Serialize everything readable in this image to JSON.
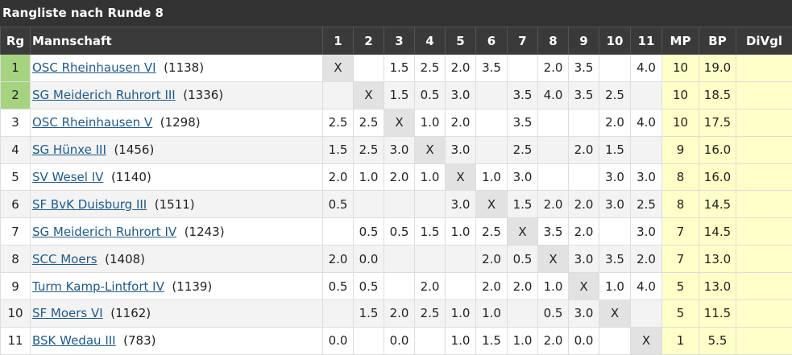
{
  "title": "Rangliste nach Runde 8",
  "table": {
    "header": [
      "Rg",
      "Mannschaft",
      "1",
      "2",
      "3",
      "4",
      "5",
      "6",
      "7",
      "8",
      "9",
      "10",
      "11",
      "MP",
      "BP",
      "DiVgl"
    ],
    "rows": [
      {
        "rank": "1",
        "team": "OSC Rheinhausen VI",
        "rating": "(1138)",
        "results": [
          "X",
          null,
          "1.5",
          "2.5",
          "2.0",
          "3.5",
          null,
          "2.0",
          "3.5",
          null,
          "4.0"
        ],
        "mp": "10",
        "bp": "19.0"
      },
      {
        "rank": "2",
        "team": "SG Meiderich Ruhrort III",
        "rating": "(1336)",
        "results": [
          null,
          "X",
          "1.5",
          "0.5",
          "3.0",
          null,
          "3.5",
          "4.0",
          "3.5",
          "2.5",
          null
        ],
        "mp": "10",
        "bp": "18.5"
      },
      {
        "rank": "3",
        "team": "OSC Rheinhausen V",
        "rating": "(1298)",
        "results": [
          "2.5",
          "2.5",
          "X",
          "1.0",
          "2.0",
          null,
          "3.5",
          null,
          null,
          "2.0",
          "4.0"
        ],
        "mp": "10",
        "bp": "17.5"
      },
      {
        "rank": "4",
        "team": "SG Hünxe III",
        "rating": "(1456)",
        "results": [
          "1.5",
          "2.5",
          "3.0",
          "X",
          "3.0",
          null,
          "2.5",
          null,
          "2.0",
          "1.5",
          null
        ],
        "mp": "9",
        "bp": "16.0"
      },
      {
        "rank": "5",
        "team": "SV Wesel IV",
        "rating": "(1140)",
        "results": [
          "2.0",
          "1.0",
          "2.0",
          "1.0",
          "X",
          "1.0",
          "3.0",
          null,
          null,
          "3.0",
          "3.0"
        ],
        "mp": "8",
        "bp": "16.0"
      },
      {
        "rank": "6",
        "team": "SF BvK Duisburg III",
        "rating": "(1511)",
        "results": [
          "0.5",
          null,
          null,
          null,
          "3.0",
          "X",
          "1.5",
          "2.0",
          "2.0",
          "3.0",
          "2.5"
        ],
        "mp": "8",
        "bp": "14.5"
      },
      {
        "rank": "7",
        "team": "SG Meiderich Ruhrort IV",
        "rating": "(1243)",
        "results": [
          null,
          "0.5",
          "0.5",
          "1.5",
          "1.0",
          "2.5",
          "X",
          "3.5",
          "2.0",
          null,
          "3.0"
        ],
        "mp": "7",
        "bp": "14.5"
      },
      {
        "rank": "8",
        "team": "SCC Moers",
        "rating": "(1408)",
        "results": [
          "2.0",
          "0.0",
          null,
          null,
          null,
          "2.0",
          "0.5",
          "X",
          "3.0",
          "3.5",
          "2.0"
        ],
        "mp": "7",
        "bp": "13.0"
      },
      {
        "rank": "9",
        "team": "Turm Kamp-Lintfort IV",
        "rating": "(1139)",
        "results": [
          "0.5",
          "0.5",
          null,
          "2.0",
          null,
          "2.0",
          "2.0",
          "1.0",
          "X",
          "1.0",
          "4.0"
        ],
        "mp": "5",
        "bp": "13.0"
      },
      {
        "rank": "10",
        "team": "SF Moers VI",
        "rating": "(1162)",
        "results": [
          null,
          "1.5",
          "2.0",
          "2.5",
          "1.0",
          "1.0",
          null,
          "0.5",
          "3.0",
          "X",
          null
        ],
        "mp": "5",
        "bp": "11.5"
      },
      {
        "rank": "11",
        "team": "BSK Wedau III",
        "rating": "(783)",
        "results": [
          "0.0",
          null,
          "0.0",
          null,
          "1.0",
          "1.5",
          "1.0",
          "2.0",
          "0.0",
          null,
          "X"
        ],
        "mp": "1",
        "bp": "5.5"
      }
    ]
  }
}
